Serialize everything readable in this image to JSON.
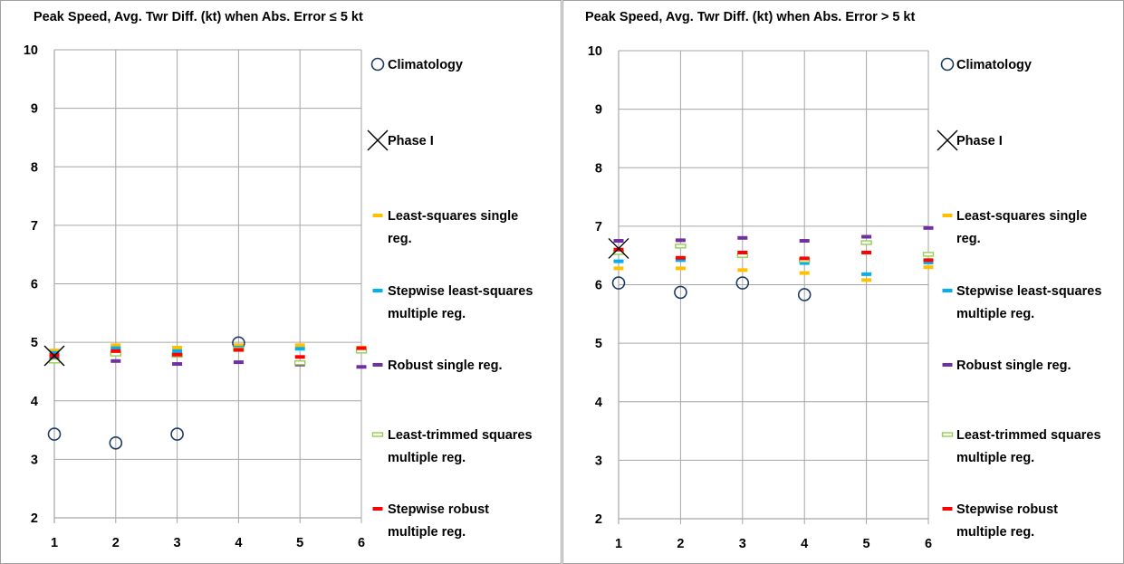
{
  "colors": {
    "grid": "#a6a6a6",
    "climatology": "#1f3b66",
    "phase1": "#000000",
    "ls_single": "#ffc000",
    "stepwise_ls": "#00b0f0",
    "robust_single": "#7030a0",
    "lts": "#92d050",
    "stepwise_robust": "#ff0000"
  },
  "chart_data": [
    {
      "type": "scatter",
      "title": "Peak Speed, Avg. Twr Diff. (kt) when Abs. Error ≤ 5 kt",
      "x_ticks": [
        "1",
        "2",
        "3",
        "4",
        "5",
        "6"
      ],
      "y_ticks": [
        "2",
        "3",
        "4",
        "5",
        "6",
        "7",
        "8",
        "9",
        "10"
      ],
      "xlim": [
        1,
        6
      ],
      "ylim": [
        2,
        10
      ],
      "grid": true,
      "legend_position": "right",
      "series": [
        {
          "name": "Climatology",
          "marker": "circle",
          "color": "#1f3b66",
          "x": [
            1,
            2,
            3,
            4
          ],
          "y": [
            3.43,
            3.28,
            3.43,
            4.99
          ]
        },
        {
          "name": "Phase I",
          "marker": "x",
          "color": "#000000",
          "x": [
            1
          ],
          "y": [
            4.77
          ]
        },
        {
          "name": "Least-squares single reg.",
          "marker": "dash",
          "color": "#ffc000",
          "x": [
            1,
            2,
            3,
            4,
            5,
            6
          ],
          "y": [
            4.86,
            4.95,
            4.91,
            4.95,
            4.95,
            4.91
          ]
        },
        {
          "name": "Stepwise least-squares multiple reg.",
          "marker": "dash",
          "color": "#00b0f0",
          "x": [
            1,
            2,
            3,
            4,
            5,
            6
          ],
          "y": [
            4.82,
            4.9,
            4.85,
            4.91,
            4.89,
            4.89
          ]
        },
        {
          "name": "Robust single reg.",
          "marker": "dash",
          "color": "#7030a0",
          "x": [
            1,
            2,
            3,
            4,
            5,
            6
          ],
          "y": [
            4.72,
            4.68,
            4.63,
            4.66,
            4.62,
            4.58
          ]
        },
        {
          "name": "Least-trimmed squares multiple reg.",
          "marker": "hollow-dash",
          "color": "#92d050",
          "x": [
            1,
            2,
            3,
            4,
            5,
            6
          ],
          "y": [
            4.68,
            4.8,
            4.78,
            4.88,
            4.65,
            4.85
          ]
        },
        {
          "name": "Stepwise robust multiple reg.",
          "marker": "dash",
          "color": "#ff0000",
          "x": [
            1,
            2,
            3,
            4,
            5,
            6
          ],
          "y": [
            4.78,
            4.85,
            4.79,
            4.87,
            4.75,
            4.9
          ]
        }
      ]
    },
    {
      "type": "scatter",
      "title": "Peak Speed, Avg. Twr Diff. (kt) when Abs. Error > 5 kt",
      "x_ticks": [
        "1",
        "2",
        "3",
        "4",
        "5",
        "6"
      ],
      "y_ticks": [
        "2",
        "3",
        "4",
        "5",
        "6",
        "7",
        "8",
        "9",
        "10"
      ],
      "xlim": [
        1,
        6
      ],
      "ylim": [
        2,
        10
      ],
      "grid": true,
      "legend_position": "right",
      "series": [
        {
          "name": "Climatology",
          "marker": "circle",
          "color": "#1f3b66",
          "x": [
            1,
            2,
            3,
            4
          ],
          "y": [
            6.03,
            5.87,
            6.03,
            5.83
          ]
        },
        {
          "name": "Phase I",
          "marker": "x",
          "color": "#000000",
          "x": [
            1
          ],
          "y": [
            6.62
          ]
        },
        {
          "name": "Least-squares single reg.",
          "marker": "dash",
          "color": "#ffc000",
          "x": [
            1,
            2,
            3,
            4,
            5,
            6
          ],
          "y": [
            6.28,
            6.28,
            6.25,
            6.2,
            6.08,
            6.3
          ]
        },
        {
          "name": "Stepwise least-squares multiple reg.",
          "marker": "dash",
          "color": "#00b0f0",
          "x": [
            1,
            2,
            3,
            4,
            5,
            6
          ],
          "y": [
            6.4,
            6.42,
            6.5,
            6.37,
            6.18,
            6.38
          ]
        },
        {
          "name": "Robust single reg.",
          "marker": "dash",
          "color": "#7030a0",
          "x": [
            1,
            2,
            3,
            4,
            5,
            6
          ],
          "y": [
            6.75,
            6.76,
            6.8,
            6.75,
            6.82,
            6.97
          ]
        },
        {
          "name": "Least-trimmed squares multiple reg.",
          "marker": "hollow-dash",
          "color": "#92d050",
          "x": [
            1,
            2,
            3,
            4,
            5,
            6
          ],
          "y": [
            6.55,
            6.66,
            6.5,
            6.42,
            6.72,
            6.52
          ]
        },
        {
          "name": "Stepwise robust multiple reg.",
          "marker": "dash",
          "color": "#ff0000",
          "x": [
            1,
            2,
            3,
            4,
            5,
            6
          ],
          "y": [
            6.6,
            6.46,
            6.55,
            6.45,
            6.55,
            6.42
          ]
        }
      ]
    }
  ],
  "legend": [
    {
      "name": "Climatology",
      "lines": [
        "Climatology"
      ]
    },
    {
      "name": "Phase I",
      "lines": [
        "Phase I"
      ]
    },
    {
      "name": "Least-squares single reg.",
      "lines": [
        "Least-squares single",
        "reg."
      ]
    },
    {
      "name": "Stepwise least-squares multiple reg.",
      "lines": [
        "Stepwise least-squares",
        "multiple reg."
      ]
    },
    {
      "name": "Robust single reg.",
      "lines": [
        "Robust single reg."
      ]
    },
    {
      "name": "Least-trimmed squares multiple reg.",
      "lines": [
        "Least-trimmed squares",
        "multiple reg."
      ]
    },
    {
      "name": "Stepwise robust multiple reg.",
      "lines": [
        "Stepwise robust",
        "multiple reg."
      ]
    }
  ]
}
